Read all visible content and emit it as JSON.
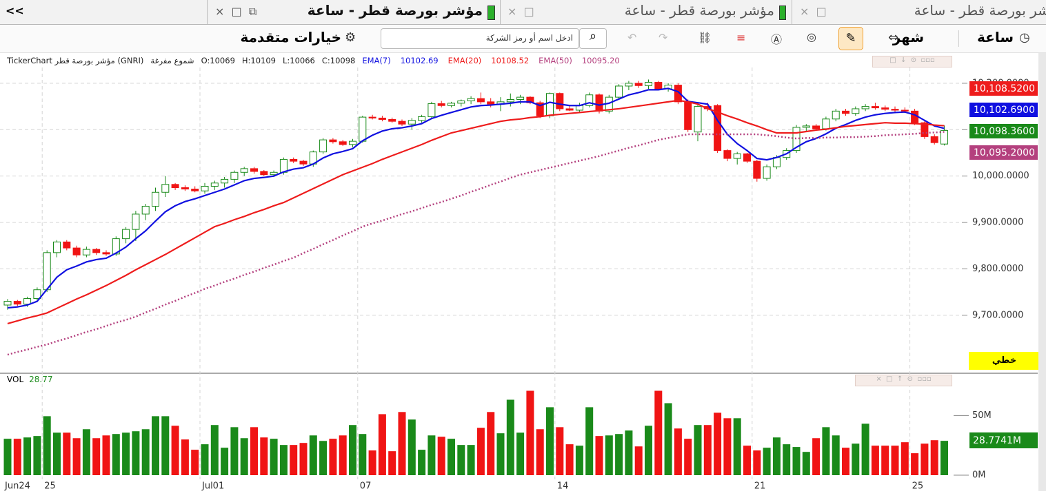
{
  "tabs": {
    "nav": "<<",
    "items": [
      {
        "title": "مؤشر بورصة قطر - ساعة"
      },
      {
        "title": "مؤشر بورصة قطر - ساعة"
      },
      {
        "title": "مؤشر بورصة قطر - ساعة"
      }
    ]
  },
  "toolbar": {
    "advanced": "خيارات متقدمة",
    "search_placeholder": "ادخل اسم أو رمز الشركة",
    "period": "شهر",
    "interval": "ساعة"
  },
  "chart_style_button": "خطي",
  "chart_data": {
    "type": "candlestick",
    "info": {
      "source": "TickerChart مؤشر بورصة قطر (GNRI)",
      "style": "شموع مفرغة",
      "open": "O:10069",
      "high": "H:10109",
      "low": "L:10066",
      "close": "C:10098"
    },
    "categories": [
      "Jun24",
      null,
      null,
      null,
      "25",
      null,
      null,
      null,
      null,
      null,
      null,
      null,
      null,
      null,
      null,
      null,
      null,
      null,
      null,
      null,
      "Jul01",
      null,
      null,
      null,
      null,
      null,
      null,
      null,
      null,
      null,
      null,
      null,
      null,
      null,
      null,
      null,
      "07",
      null,
      null,
      null,
      null,
      null,
      null,
      null,
      null,
      null,
      null,
      null,
      null,
      null,
      null,
      null,
      null,
      null,
      null,
      null,
      "14",
      null,
      null,
      null,
      null,
      null,
      null,
      null,
      null,
      null,
      null,
      null,
      null,
      null,
      null,
      null,
      null,
      null,
      null,
      null,
      "21",
      null,
      null,
      null,
      null,
      null,
      null,
      null,
      null,
      null,
      null,
      null,
      null,
      null,
      null,
      null,
      "25",
      null,
      null,
      null
    ],
    "up_color": "#1a8a1a",
    "down_color": "#f01414",
    "candles": {
      "open": [
        9722,
        9730,
        9724,
        9736,
        9755,
        9835,
        9858,
        9845,
        9830,
        9842,
        9835,
        9832,
        9865,
        9885,
        9918,
        9935,
        9965,
        9982,
        9975,
        9972,
        9968,
        9978,
        9985,
        9993,
        10008,
        10016,
        10010,
        10003,
        10008,
        10036,
        10032,
        10026,
        10052,
        10078,
        10074,
        10068,
        10075,
        10127,
        10125,
        10122,
        10118,
        10112,
        10120,
        10128,
        10156,
        10152,
        10157,
        10162,
        10167,
        10160,
        10155,
        10160,
        10165,
        10170,
        10158,
        10130,
        10178,
        10145,
        10142,
        10152,
        10175,
        10140,
        10170,
        10194,
        10200,
        10195,
        10202,
        10188,
        10196,
        10160,
        10095,
        10150,
        10152,
        10055,
        10038,
        10048,
        10032,
        9995,
        10020,
        10040,
        10055,
        10105,
        10108,
        10102,
        10123,
        10140,
        10135,
        10145,
        10150,
        10147,
        10144,
        10142,
        10140,
        10115,
        10085,
        10069
      ],
      "high": [
        9735,
        9733,
        9740,
        9760,
        9840,
        9862,
        9862,
        9850,
        9848,
        9845,
        9840,
        9870,
        9890,
        9925,
        9940,
        9975,
        10000,
        9985,
        9980,
        9978,
        9985,
        9990,
        9998,
        10012,
        10020,
        10020,
        10013,
        10012,
        10040,
        10040,
        10035,
        10055,
        10082,
        10082,
        10078,
        10080,
        10130,
        10132,
        10130,
        10126,
        10122,
        10125,
        10132,
        10160,
        10162,
        10160,
        10165,
        10172,
        10180,
        10168,
        10170,
        10178,
        10175,
        10172,
        10162,
        10180,
        10180,
        10152,
        10158,
        10180,
        10178,
        10175,
        10198,
        10205,
        10205,
        10208,
        10205,
        10200,
        10200,
        10165,
        10155,
        10158,
        10155,
        10058,
        10052,
        10050,
        10035,
        10025,
        10045,
        10060,
        10110,
        10112,
        10112,
        10128,
        10145,
        10145,
        10150,
        10155,
        10158,
        10152,
        10150,
        10148,
        10145,
        10118,
        10090,
        10109
      ],
      "low": [
        9712,
        9720,
        9718,
        9730,
        9750,
        9825,
        9840,
        9825,
        9825,
        9830,
        9828,
        9828,
        9855,
        9860,
        9905,
        9925,
        9955,
        9970,
        9968,
        9965,
        9962,
        9970,
        9975,
        9985,
        10000,
        10005,
        10000,
        9998,
        10003,
        10028,
        10022,
        10020,
        10048,
        10070,
        10065,
        10062,
        10072,
        10122,
        10118,
        10115,
        10108,
        10100,
        10115,
        10125,
        10148,
        10148,
        10150,
        10155,
        10155,
        10148,
        10140,
        10150,
        10155,
        10155,
        10125,
        10125,
        10140,
        10140,
        10138,
        10148,
        10135,
        10135,
        10165,
        10185,
        10190,
        10188,
        10185,
        10182,
        10155,
        10095,
        10075,
        10140,
        10050,
        10032,
        10025,
        10028,
        9988,
        9990,
        10015,
        10035,
        10050,
        10095,
        10098,
        10098,
        10118,
        10130,
        10130,
        10140,
        10143,
        10140,
        10138,
        10136,
        10110,
        10080,
        10068,
        10066
      ],
      "close": [
        9730,
        9724,
        9736,
        9755,
        9835,
        9858,
        9845,
        9830,
        9842,
        9835,
        9832,
        9865,
        9885,
        9918,
        9935,
        9965,
        9982,
        9975,
        9972,
        9968,
        9978,
        9985,
        9993,
        10008,
        10016,
        10010,
        10003,
        10008,
        10036,
        10032,
        10026,
        10052,
        10078,
        10074,
        10068,
        10075,
        10127,
        10125,
        10122,
        10118,
        10112,
        10120,
        10128,
        10156,
        10152,
        10157,
        10162,
        10167,
        10160,
        10155,
        10160,
        10165,
        10170,
        10158,
        10130,
        10178,
        10145,
        10142,
        10152,
        10175,
        10140,
        10170,
        10194,
        10200,
        10195,
        10202,
        10188,
        10196,
        10160,
        10100,
        10150,
        10145,
        10055,
        10038,
        10048,
        10032,
        9995,
        10020,
        10040,
        10055,
        10105,
        10108,
        10102,
        10123,
        10140,
        10135,
        10145,
        10150,
        10147,
        10144,
        10142,
        10140,
        10115,
        10085,
        10072,
        10098.36
      ],
      "close_label": "10,098.3600"
    },
    "series": [
      {
        "name": "EMA(7)",
        "color": "#1010e0",
        "line_style": "solid",
        "last_label": "10102.69",
        "axis_label": "10,102.6900",
        "values": [
          9716,
          9718,
          9722,
          9730,
          9756,
          9782,
          9798,
          9806,
          9815,
          9820,
          9823,
          9834,
          9847,
          9865,
          9882,
          9903,
          9923,
          9936,
          9945,
          9951,
          9958,
          9965,
          9972,
          9981,
          9990,
          9995,
          9997,
          10000,
          10009,
          10015,
          10018,
          10026,
          10039,
          10048,
          10053,
          10059,
          10076,
          10088,
          10097,
          10102,
          10104,
          10108,
          10113,
          10124,
          10131,
          10137,
          10143,
          10149,
          10152,
          10153,
          10155,
          10157,
          10160,
          10160,
          10152,
          10159,
          10155,
          10152,
          10152,
          10158,
          10153,
          10157,
          10166,
          10175,
          10180,
          10186,
          10186,
          10189,
          10182,
          10161,
          10158,
          10155,
          10120,
          10090,
          10070,
          10055,
          10038,
          10035,
          10040,
          10048,
          10062,
          10074,
          10081,
          10091,
          10103,
          10111,
          10120,
          10127,
          10132,
          10135,
          10137,
          10138,
          10132,
          10120,
          10108,
          10102.69
        ]
      },
      {
        "name": "EMA(20)",
        "color": "#ee1c1c",
        "line_style": "solid",
        "last_label": "10108.52",
        "axis_label": "10,108.5200",
        "values": [
          9682,
          9688,
          9694,
          9699,
          9705,
          9715,
          9725,
          9735,
          9744,
          9754,
          9764,
          9775,
          9786,
          9798,
          9809,
          9820,
          9831,
          9843,
          9855,
          9867,
          9879,
          9891,
          9898,
          9906,
          9913,
          9921,
          9928,
          9936,
          9943,
          9953,
          9963,
          9973,
          9983,
          9993,
          10003,
          10011,
          10019,
          10027,
          10036,
          10044,
          10052,
          10060,
          10068,
          10077,
          10085,
          10093,
          10098,
          10103,
          10108,
          10113,
          10118,
          10121,
          10123,
          10126,
          10128,
          10131,
          10133,
          10135,
          10137,
          10139,
          10141,
          10143,
          10145,
          10148,
          10151,
          10154,
          10157,
          10160,
          10163,
          10160,
          10155,
          10145,
          10138,
          10130,
          10123,
          10115,
          10108,
          10100,
          10093,
          10093,
          10093,
          10096,
          10099,
          10101,
          10104,
          10107,
          10109,
          10111,
          10113,
          10115,
          10114,
          10114,
          10113,
          10112,
          10110,
          10108.52
        ]
      },
      {
        "name": "EMA(50)",
        "color": "#b4407e",
        "line_style": "dotted",
        "last_label": "10095.20",
        "axis_label": "10,095.2000",
        "values": [
          9615,
          9621,
          9626,
          9632,
          9637,
          9644,
          9650,
          9657,
          9664,
          9670,
          9677,
          9684,
          9690,
          9697,
          9706,
          9714,
          9723,
          9731,
          9740,
          9748,
          9757,
          9764,
          9772,
          9779,
          9787,
          9794,
          9802,
          9809,
          9817,
          9824,
          9834,
          9843,
          9853,
          9862,
          9872,
          9881,
          9891,
          9898,
          9904,
          9911,
          9918,
          9924,
          9931,
          9938,
          9944,
          9951,
          9958,
          9966,
          9973,
          9981,
          9988,
          9996,
          10003,
          10008,
          10013,
          10018,
          10023,
          10028,
          10033,
          10038,
          10043,
          10049,
          10055,
          10061,
          10066,
          10072,
          10078,
          10082,
          10086,
          10090,
          10090,
          10090,
          10090,
          10090,
          10090,
          10090,
          10090,
          10088,
          10086,
          10083,
          10081,
          10082,
          10082,
          10083,
          10083,
          10084,
          10084,
          10085,
          10086,
          10088,
          10089,
          10090,
          10091,
          10093,
          10094,
          10095.2
        ]
      }
    ],
    "ylim": [
      9578,
      10234
    ],
    "yticks": [
      {
        "value": 9700,
        "label": "9,700.0000"
      },
      {
        "value": 9800,
        "label": "9,800.0000"
      },
      {
        "value": 9900,
        "label": "9,900.0000"
      },
      {
        "value": 10000,
        "label": "10,000.0000"
      },
      {
        "value": 10100,
        "label": "10,100.0000"
      },
      {
        "value": 10200,
        "label": "10,200.0000"
      }
    ],
    "grid": true,
    "volume": {
      "name": "VOL",
      "last_label": "28.77",
      "axis_label": "28.7741M",
      "color": "#1a8a1a",
      "values": [
        30.5,
        30.5,
        31.6,
        32.8,
        49.4,
        35.6,
        35.6,
        31,
        38.5,
        31,
        33.3,
        34.5,
        35.6,
        36.8,
        38.5,
        49.4,
        49.4,
        41.4,
        29.9,
        21.3,
        25.9,
        42,
        23,
        40.2,
        31,
        40.2,
        31.6,
        30.5,
        25.3,
        25.3,
        27,
        33.3,
        28.7,
        30.5,
        33.3,
        42,
        34.5,
        20.7,
        51.1,
        20.1,
        52.9,
        46.6,
        21.3,
        33.3,
        32.2,
        30.5,
        25.3,
        25.3,
        39.7,
        52.9,
        35.1,
        63.2,
        35.6,
        70.7,
        38.5,
        56.9,
        40.2,
        25.9,
        24.7,
        56.9,
        32.8,
        33.3,
        34.5,
        37.4,
        24.1,
        41.4,
        70.7,
        60.3,
        39.1,
        30.5,
        42,
        42,
        52.3,
        47.7,
        47.7,
        24.7,
        20.7,
        23,
        31.6,
        25.9,
        23.6,
        19.5,
        31,
        40.2,
        33.3,
        23,
        26.4,
        43.1,
        24.7,
        24.7,
        24.7,
        27.6,
        18.4,
        26.4,
        29.3,
        28.7741
      ],
      "ylim": [
        0,
        75
      ],
      "yticks": [
        {
          "value": 0,
          "label": "0M"
        },
        {
          "value": 50,
          "label": "50M"
        }
      ]
    }
  }
}
